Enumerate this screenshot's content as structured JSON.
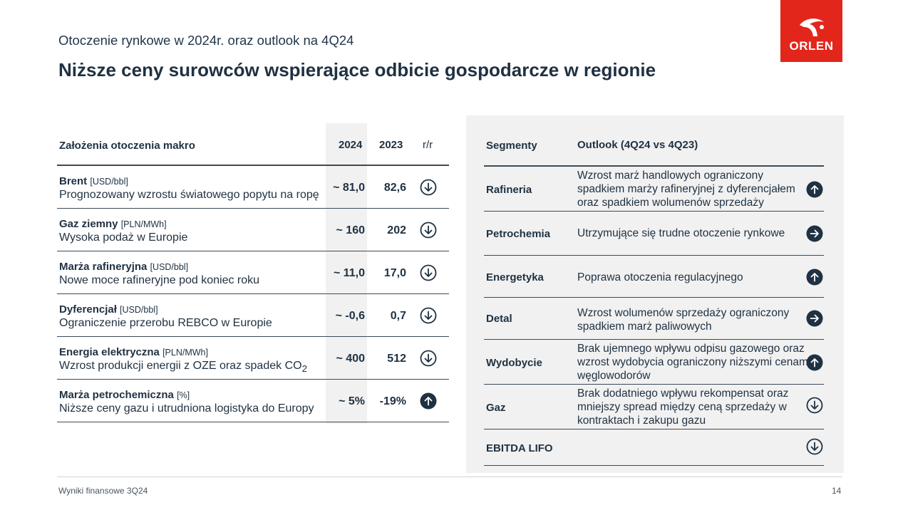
{
  "logo_text": "ORLEN",
  "subtitle": "Otoczenie rynkowe w 2024r. oraz outlook na 4Q24",
  "title": "Niższe ceny surowców wspierające odbicie gospodarcze w regionie",
  "macro_table": {
    "headers": {
      "label": "Założenia otoczenia makro",
      "y2024": "2024",
      "y2023": "2023",
      "yoy": "r/r"
    },
    "rows": [
      {
        "name": "Brent",
        "unit": "[USD/bbl]",
        "desc": "Prognozowany wzrostu światowego popytu na ropę",
        "v2024": "~ 81,0",
        "v2023": "82,6",
        "trend_icon": "arrow-down-outline"
      },
      {
        "name": "Gaz ziemny",
        "unit": "[PLN/MWh]",
        "desc": "Wysoka podaż w Europie",
        "v2024": "~ 160",
        "v2023": "202",
        "trend_icon": "arrow-down-outline"
      },
      {
        "name": "Marża rafineryjna",
        "unit": "[USD/bbl]",
        "desc": "Nowe moce rafineryjne pod koniec roku",
        "v2024": "~ 11,0",
        "v2023": "17,0",
        "trend_icon": "arrow-down-outline"
      },
      {
        "name": "Dyferencjał",
        "unit": "[USD/bbl]",
        "desc": "Ograniczenie przerobu REBCO w Europie",
        "v2024": "~ -0,6",
        "v2023": "0,7",
        "trend_icon": "arrow-down-outline"
      },
      {
        "name": "Energia elektryczna",
        "unit": "[PLN/MWh]",
        "desc": "Wzrost produkcji energii z OZE oraz spadek CO",
        "desc_sub": "2",
        "v2024": "~ 400",
        "v2023": "512",
        "trend_icon": "arrow-down-outline"
      },
      {
        "name": "Marża petrochemiczna",
        "unit": "[%]",
        "desc": "Niższe ceny gazu i utrudniona logistyka do Europy",
        "v2024": "~ 5%",
        "v2023": "-19%",
        "trend_icon": "arrow-up-filled"
      }
    ]
  },
  "outlook_table": {
    "headers": {
      "segment": "Segmenty",
      "outlook": "Outlook (4Q24 vs 4Q23)"
    },
    "rows": [
      {
        "segment": "Rafineria",
        "text": "Wzrost marż handlowych ograniczony spadkiem  marży rafineryjnej z dyferencjałem oraz spadkiem wolumenów sprzedaży",
        "trend_icon": "arrow-up-filled"
      },
      {
        "segment": "Petrochemia",
        "text": "Utrzymujące się trudne otoczenie rynkowe",
        "trend_icon": "arrow-right-filled"
      },
      {
        "segment": "Energetyka",
        "text": "Poprawa otoczenia regulacyjnego",
        "trend_icon": "arrow-up-filled"
      },
      {
        "segment": "Detal",
        "text": "Wzrost wolumenów sprzedaży ograniczony spadkiem marż paliwowych",
        "trend_icon": "arrow-right-filled"
      },
      {
        "segment": "Wydobycie",
        "text": "Brak ujemnego wpływu odpisu gazowego oraz wzrost wydobycia ograniczony niższymi cenami węglowodorów",
        "trend_icon": "arrow-up-filled"
      },
      {
        "segment": "Gaz",
        "text": "Brak dodatniego wpływu rekompensat oraz mniejszy spread między ceną sprzedaży w kontraktach i zakupu gazu",
        "trend_icon": "arrow-down-outline"
      },
      {
        "segment": "EBITDA LIFO",
        "text": "",
        "trend_icon": "arrow-down-outline"
      }
    ]
  },
  "footer": {
    "left": "Wyniki finansowe 3Q24",
    "page": "14"
  },
  "colors": {
    "brand_red": "#e3261c",
    "navy": "#1f3142",
    "panel_gray": "#f1f1f1"
  }
}
